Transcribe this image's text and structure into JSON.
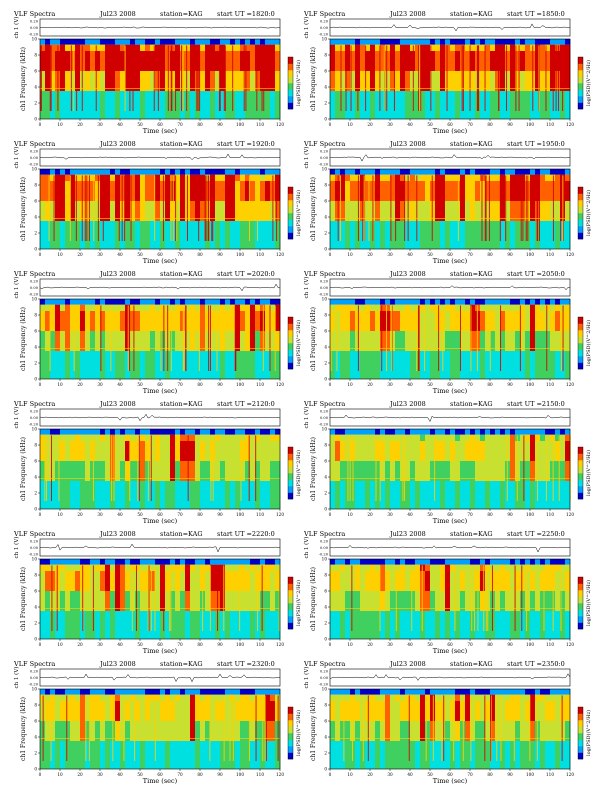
{
  "page": {
    "header_text": "VLF Spectra",
    "date": "Jul23 2008",
    "station": "station=KAG",
    "start_prefix": "start UT =",
    "ch1_axis_label": "ch 1 (V)",
    "freq_axis_label": "ch1 Frequency (kHz)",
    "time_axis_label": "Time (sec)",
    "colorbar_label": "log(PSD)(V^2/Hz)"
  },
  "colors": {
    "spectrogram_scale": [
      "#0000c8",
      "#00a0ff",
      "#00e0e0",
      "#40d060",
      "#c8e030",
      "#ffd000",
      "#ff6000",
      "#d00000"
    ]
  },
  "chart_data": [
    {
      "type": "heatmap",
      "title": "VLF Spectra",
      "date": "Jul23 2008",
      "station": "station=KAG",
      "start_ut": "1820:0",
      "xlabel": "Time (sec)",
      "ylabel": "ch1 Frequency (kHz)",
      "ylabel_top": "ch 1 (V)",
      "xlim": [
        0,
        120
      ],
      "ylim": [
        0,
        10
      ],
      "ch1_ylim": [
        -0.2,
        0.2
      ],
      "x_ticks": [
        0,
        10,
        20,
        30,
        40,
        50,
        60,
        70,
        80,
        90,
        100,
        110,
        120
      ],
      "y_ticks": [
        0,
        2,
        4,
        6,
        8,
        10
      ],
      "ch1_ticks": [
        "0.20",
        "0.00",
        "-0.20"
      ],
      "colorbar_label": "log(PSD)(V^2/Hz)",
      "activity": 0.9
    },
    {
      "type": "heatmap",
      "title": "VLF Spectra",
      "date": "Jul23 2008",
      "station": "station=KAG",
      "start_ut": "1850:0",
      "xlabel": "Time (sec)",
      "ylabel": "ch1 Frequency (kHz)",
      "ylabel_top": "ch 1 (V)",
      "xlim": [
        0,
        120
      ],
      "ylim": [
        0,
        10
      ],
      "ch1_ylim": [
        -0.2,
        0.2
      ],
      "x_ticks": [
        0,
        10,
        20,
        30,
        40,
        50,
        60,
        70,
        80,
        90,
        100,
        110,
        120
      ],
      "y_ticks": [
        0,
        2,
        4,
        6,
        8,
        10
      ],
      "ch1_ticks": [
        "0.20",
        "0.00",
        "-0.20"
      ],
      "colorbar_label": "log(PSD)(V^2/Hz)",
      "activity": 0.85
    },
    {
      "type": "heatmap",
      "title": "VLF Spectra",
      "date": "Jul23 2008",
      "station": "station=KAG",
      "start_ut": "1920:0",
      "xlabel": "Time (sec)",
      "ylabel": "ch1 Frequency (kHz)",
      "ylabel_top": "ch 1 (V)",
      "xlim": [
        0,
        120
      ],
      "ylim": [
        0,
        10
      ],
      "ch1_ylim": [
        -0.2,
        0.2
      ],
      "x_ticks": [
        0,
        10,
        20,
        30,
        40,
        50,
        60,
        70,
        80,
        90,
        100,
        110,
        120
      ],
      "y_ticks": [
        0,
        2,
        4,
        6,
        8,
        10
      ],
      "ch1_ticks": [
        "0.20",
        "0.00",
        "-0.20"
      ],
      "colorbar_label": "log(PSD)(V^2/Hz)",
      "activity": 0.75
    },
    {
      "type": "heatmap",
      "title": "VLF Spectra",
      "date": "Jul23 2008",
      "station": "station=KAG",
      "start_ut": "1950:0",
      "xlabel": "Time (sec)",
      "ylabel": "ch1 Frequency (kHz)",
      "ylabel_top": "ch 1 (V)",
      "xlim": [
        0,
        120
      ],
      "ylim": [
        0,
        10
      ],
      "ch1_ylim": [
        -0.2,
        0.2
      ],
      "x_ticks": [
        0,
        10,
        20,
        30,
        40,
        50,
        60,
        70,
        80,
        90,
        100,
        110,
        120
      ],
      "y_ticks": [
        0,
        2,
        4,
        6,
        8,
        10
      ],
      "ch1_ticks": [
        "0.20",
        "0.00",
        "-0.20"
      ],
      "colorbar_label": "log(PSD)(V^2/Hz)",
      "activity": 0.75
    },
    {
      "type": "heatmap",
      "title": "VLF Spectra",
      "date": "Jul23 2008",
      "station": "station=KAG",
      "start_ut": "2020:0",
      "xlabel": "Time (sec)",
      "ylabel": "ch1 Frequency (kHz)",
      "ylabel_top": "ch 1 (V)",
      "xlim": [
        0,
        120
      ],
      "ylim": [
        0,
        10
      ],
      "ch1_ylim": [
        -0.2,
        0.2
      ],
      "x_ticks": [
        0,
        10,
        20,
        30,
        40,
        50,
        60,
        70,
        80,
        90,
        100,
        110,
        120
      ],
      "y_ticks": [
        0,
        2,
        4,
        6,
        8,
        10
      ],
      "ch1_ticks": [
        "0.20",
        "0.00",
        "-0.20"
      ],
      "colorbar_label": "log(PSD)(V^2/Hz)",
      "activity": 0.5
    },
    {
      "type": "heatmap",
      "title": "VLF Spectra",
      "date": "Jul23 2008",
      "station": "station=KAG",
      "start_ut": "2050:0",
      "xlabel": "Time (sec)",
      "ylabel": "ch1 Frequency (kHz)",
      "ylabel_top": "ch 1 (V)",
      "xlim": [
        0,
        120
      ],
      "ylim": [
        0,
        10
      ],
      "ch1_ylim": [
        -0.2,
        0.2
      ],
      "x_ticks": [
        0,
        10,
        20,
        30,
        40,
        50,
        60,
        70,
        80,
        90,
        100,
        110,
        120
      ],
      "y_ticks": [
        0,
        2,
        4,
        6,
        8,
        10
      ],
      "ch1_ticks": [
        "0.20",
        "0.00",
        "-0.20"
      ],
      "colorbar_label": "log(PSD)(V^2/Hz)",
      "activity": 0.4
    },
    {
      "type": "heatmap",
      "title": "VLF Spectra",
      "date": "Jul23 2008",
      "station": "station=KAG",
      "start_ut": "2120:0",
      "xlabel": "Time (sec)",
      "ylabel": "ch1 Frequency (kHz)",
      "ylabel_top": "ch 1 (V)",
      "xlim": [
        0,
        120
      ],
      "ylim": [
        0,
        10
      ],
      "ch1_ylim": [
        -0.2,
        0.2
      ],
      "x_ticks": [
        0,
        10,
        20,
        30,
        40,
        50,
        60,
        70,
        80,
        90,
        100,
        110,
        120
      ],
      "y_ticks": [
        0,
        2,
        4,
        6,
        8,
        10
      ],
      "ch1_ticks": [
        "0.20",
        "0.00",
        "-0.20"
      ],
      "colorbar_label": "log(PSD)(V^2/Hz)",
      "activity": 0.25
    },
    {
      "type": "heatmap",
      "title": "VLF Spectra",
      "date": "Jul23 2008",
      "station": "station=KAG",
      "start_ut": "2150:0",
      "xlabel": "Time (sec)",
      "ylabel": "ch1 Frequency (kHz)",
      "ylabel_top": "ch 1 (V)",
      "xlim": [
        0,
        120
      ],
      "ylim": [
        0,
        10
      ],
      "ch1_ylim": [
        -0.2,
        0.2
      ],
      "x_ticks": [
        0,
        10,
        20,
        30,
        40,
        50,
        60,
        70,
        80,
        90,
        100,
        110,
        120
      ],
      "y_ticks": [
        0,
        2,
        4,
        6,
        8,
        10
      ],
      "ch1_ticks": [
        "0.20",
        "0.00",
        "-0.20"
      ],
      "colorbar_label": "log(PSD)(V^2/Hz)",
      "activity": 0.2
    },
    {
      "type": "heatmap",
      "title": "VLF Spectra",
      "date": "Jul23 2008",
      "station": "station=KAG",
      "start_ut": "2220:0",
      "xlabel": "Time (sec)",
      "ylabel": "ch1 Frequency (kHz)",
      "ylabel_top": "ch 1 (V)",
      "xlim": [
        0,
        120
      ],
      "ylim": [
        0,
        10
      ],
      "ch1_ylim": [
        -0.2,
        0.2
      ],
      "x_ticks": [
        0,
        10,
        20,
        30,
        40,
        50,
        60,
        70,
        80,
        90,
        100,
        110,
        120
      ],
      "y_ticks": [
        0,
        2,
        4,
        6,
        8,
        10
      ],
      "ch1_ticks": [
        "0.20",
        "0.00",
        "-0.20"
      ],
      "colorbar_label": "log(PSD)(V^2/Hz)",
      "activity": 0.4
    },
    {
      "type": "heatmap",
      "title": "VLF Spectra",
      "date": "Jul23 2008",
      "station": "station=KAG",
      "start_ut": "2250:0",
      "xlabel": "Time (sec)",
      "ylabel": "ch1 Frequency (kHz)",
      "ylabel_top": "ch 1 (V)",
      "xlim": [
        0,
        120
      ],
      "ylim": [
        0,
        10
      ],
      "ch1_ylim": [
        -0.2,
        0.2
      ],
      "x_ticks": [
        0,
        10,
        20,
        30,
        40,
        50,
        60,
        70,
        80,
        90,
        100,
        110,
        120
      ],
      "y_ticks": [
        0,
        2,
        4,
        6,
        8,
        10
      ],
      "ch1_ticks": [
        "0.20",
        "0.00",
        "-0.20"
      ],
      "colorbar_label": "log(PSD)(V^2/Hz)",
      "activity": 0.3
    },
    {
      "type": "heatmap",
      "title": "VLF Spectra",
      "date": "Jul23 2008",
      "station": "station=KAG",
      "start_ut": "2320:0",
      "xlabel": "Time (sec)",
      "ylabel": "ch1 Frequency (kHz)",
      "ylabel_top": "ch 1 (V)",
      "xlim": [
        0,
        120
      ],
      "ylim": [
        0,
        10
      ],
      "ch1_ylim": [
        -0.2,
        0.2
      ],
      "x_ticks": [
        0,
        10,
        20,
        30,
        40,
        50,
        60,
        70,
        80,
        90,
        100,
        110,
        120
      ],
      "y_ticks": [
        0,
        2,
        4,
        6,
        8,
        10
      ],
      "ch1_ticks": [
        "0.20",
        "0.00",
        "-0.20"
      ],
      "colorbar_label": "log(PSD)(V^2/Hz)",
      "activity": 0.3
    },
    {
      "type": "heatmap",
      "title": "VLF Spectra",
      "date": "Jul23 2008",
      "station": "station=KAG",
      "start_ut": "2350:0",
      "xlabel": "Time (sec)",
      "ylabel": "ch1 Frequency (kHz)",
      "ylabel_top": "ch 1 (V)",
      "xlim": [
        0,
        120
      ],
      "ylim": [
        0,
        10
      ],
      "ch1_ylim": [
        -0.2,
        0.2
      ],
      "x_ticks": [
        0,
        10,
        20,
        30,
        40,
        50,
        60,
        70,
        80,
        90,
        100,
        110,
        120
      ],
      "y_ticks": [
        0,
        2,
        4,
        6,
        8,
        10
      ],
      "ch1_ticks": [
        "0.20",
        "0.00",
        "-0.20"
      ],
      "colorbar_label": "log(PSD)(V^2/Hz)",
      "activity": 0.35
    }
  ]
}
